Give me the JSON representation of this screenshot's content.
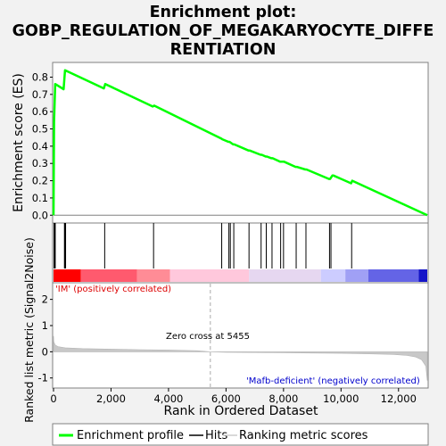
{
  "title_lines": [
    "Enrichment plot:",
    "GOBP_REGULATION_OF_MEGAKARYOCYTE_DIFFE",
    "RENTIATION"
  ],
  "chart_data": {
    "type": "line",
    "n_genes": 13000,
    "enrichment_profile": {
      "ylabel": "Enrichment score (ES)",
      "ylim": [
        -0.04,
        0.88
      ],
      "yticks": [
        0.0,
        0.1,
        0.2,
        0.3,
        0.4,
        0.5,
        0.6,
        0.7,
        0.8
      ],
      "ytick_labels": [
        "0.0",
        "0.1",
        "0.2",
        "0.3",
        "0.4",
        "0.5",
        "0.6",
        "0.7",
        "0.8"
      ],
      "line_color": "#00ff00",
      "x": [
        0,
        20,
        60,
        350,
        400,
        1750,
        1800,
        3450,
        3500,
        5830,
        5870,
        6080,
        6120,
        6250,
        6290,
        6780,
        6820,
        7200,
        7240,
        7380,
        7420,
        7580,
        7620,
        7880,
        7920,
        7980,
        8020,
        8420,
        8460,
        8760,
        8800,
        9580,
        9620,
        9700,
        9740,
        10350,
        10390,
        13000
      ],
      "y": [
        0.0,
        0.54,
        0.76,
        0.73,
        0.84,
        0.735,
        0.76,
        0.63,
        0.635,
        0.445,
        0.44,
        0.425,
        0.425,
        0.41,
        0.41,
        0.375,
        0.375,
        0.35,
        0.35,
        0.34,
        0.34,
        0.33,
        0.33,
        0.31,
        0.31,
        0.31,
        0.31,
        0.28,
        0.28,
        0.265,
        0.265,
        0.21,
        0.21,
        0.23,
        0.23,
        0.185,
        0.2,
        0.0
      ]
    },
    "hits": [
      20,
      40,
      60,
      380,
      400,
      420,
      1780,
      3480,
      5850,
      6100,
      6150,
      6270,
      6800,
      7220,
      7400,
      7600,
      7900,
      8000,
      8440,
      8780,
      9600,
      9650,
      10370
    ],
    "ranking_metric": {
      "ylabel": "Ranked list metric (Signal2Noise)",
      "ylim": [
        -1.35,
        2.6
      ],
      "yticks": [
        -1,
        0,
        1,
        2
      ],
      "ytick_labels": [
        "-1",
        "0",
        "1",
        "2"
      ],
      "xlabel": "Rank in Ordered Dataset",
      "xticks": [
        0,
        2000,
        4000,
        6000,
        8000,
        10000,
        12000
      ],
      "xtick_labels": [
        "0",
        "2,000",
        "4,000",
        "6,000",
        "8,000",
        "10,000",
        "12,000"
      ],
      "zero_cross": 5455,
      "x": [
        0,
        10,
        60,
        150,
        400,
        1000,
        2000,
        3000,
        4000,
        5000,
        5455,
        6000,
        7000,
        8000,
        9000,
        10000,
        11000,
        11800,
        12300,
        12600,
        12800,
        12950,
        13000
      ],
      "y": [
        0.6,
        0.38,
        0.26,
        0.2,
        0.15,
        0.12,
        0.1,
        0.08,
        0.065,
        0.04,
        0.0,
        -0.02,
        -0.03,
        -0.04,
        -0.05,
        -0.06,
        -0.08,
        -0.1,
        -0.14,
        -0.2,
        -0.3,
        -0.55,
        -1.1
      ]
    },
    "annotations": {
      "positive": "'IM' (positively correlated)",
      "negative": "'Mafb-deficient' (negatively correlated)",
      "zero_cross": "Zero cross at 5455",
      "positive_color": "#dd0000",
      "negative_color": "#0000cc"
    },
    "legend": [
      "Enrichment profile",
      "Hits",
      "Ranking metric scores"
    ],
    "heatmap_colors": [
      "#ff0000",
      "#ff5a6e",
      "#ff8c96",
      "#ffc8dc",
      "#e6d7f0",
      "#ccccff",
      "#a0a0f5",
      "#6464e6",
      "#1414c8"
    ],
    "heatmap_segments": [
      {
        "start": 0,
        "end": 950,
        "color": 0
      },
      {
        "start": 950,
        "end": 2900,
        "color": 1
      },
      {
        "start": 2900,
        "end": 4050,
        "color": 2
      },
      {
        "start": 4050,
        "end": 6800,
        "color": 3
      },
      {
        "start": 6800,
        "end": 9300,
        "color": 4
      },
      {
        "start": 9300,
        "end": 10150,
        "color": 5
      },
      {
        "start": 10150,
        "end": 10950,
        "color": 6
      },
      {
        "start": 10950,
        "end": 12700,
        "color": 7
      },
      {
        "start": 12700,
        "end": 13000,
        "color": 8
      }
    ]
  }
}
